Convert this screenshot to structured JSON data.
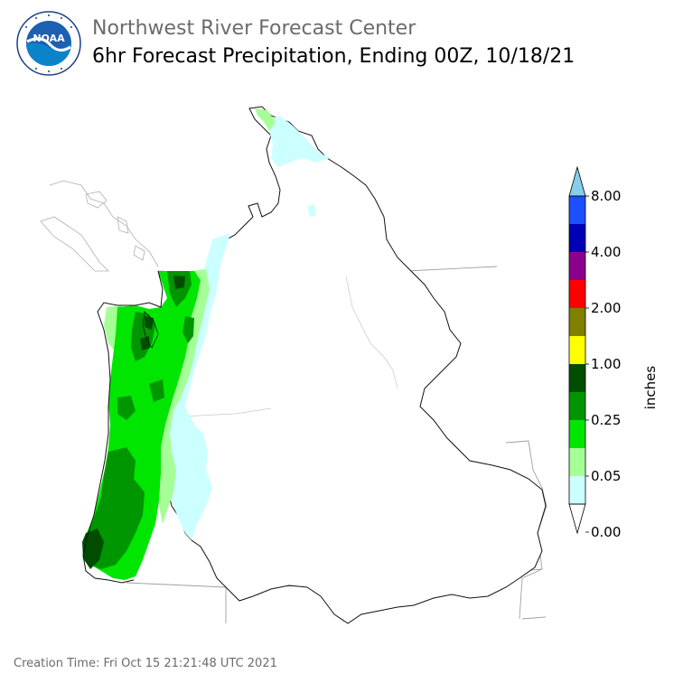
{
  "header": {
    "title": "Northwest River Forecast Center",
    "subtitle": "6hr Forecast Precipitation, Ending 00Z, 10/18/21",
    "logo": {
      "text": "NOAA",
      "ring_text_top": "NATIONAL OCEANIC AND ATMOSPHERIC ADMINISTRATION",
      "ring_text_bottom": "U.S. DEPARTMENT OF COMMERCE"
    }
  },
  "legend": {
    "unit": "inches",
    "tick_labels": [
      "8.00",
      "4.00",
      "2.00",
      "1.00",
      "0.25",
      "0.05",
      "0.00"
    ],
    "colors": [
      "#87ceeb",
      "#1e4fff",
      "#0000b4",
      "#8b008b",
      "#ff0000",
      "#808000",
      "#ffff00",
      "#004d00",
      "#009600",
      "#00e600",
      "#a6ff96",
      "#ccffff",
      "#ffffff"
    ]
  },
  "footer": {
    "creation_time": "Creation Time: Fri Oct 15 21:21:48 UTC 2021"
  }
}
